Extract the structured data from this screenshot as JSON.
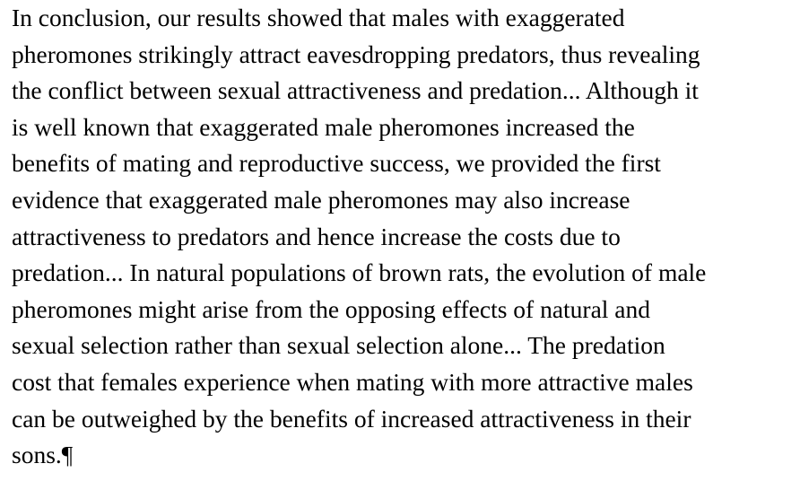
{
  "paragraph": {
    "lines": [
      "In conclusion, our results showed that males with exaggerated",
      "pheromones strikingly attract eavesdropping predators, thus revealing",
      "the conflict between sexual attractiveness and predation... Although it",
      "is well known that exaggerated male pheromones increased the",
      "benefits of mating and reproductive success, we provided the first",
      "evidence that exaggerated male pheromones may also increase",
      "attractiveness to predators and hence increase the costs due to",
      "predation... In natural populations of brown rats, the evolution of male",
      "pheromones might arise from the opposing effects of natural and",
      "sexual selection rather than sexual selection alone... The predation",
      "cost that females experience when mating with more attractive males",
      "can be outweighed by the benefits of increased attractiveness in their",
      "sons.¶"
    ]
  }
}
